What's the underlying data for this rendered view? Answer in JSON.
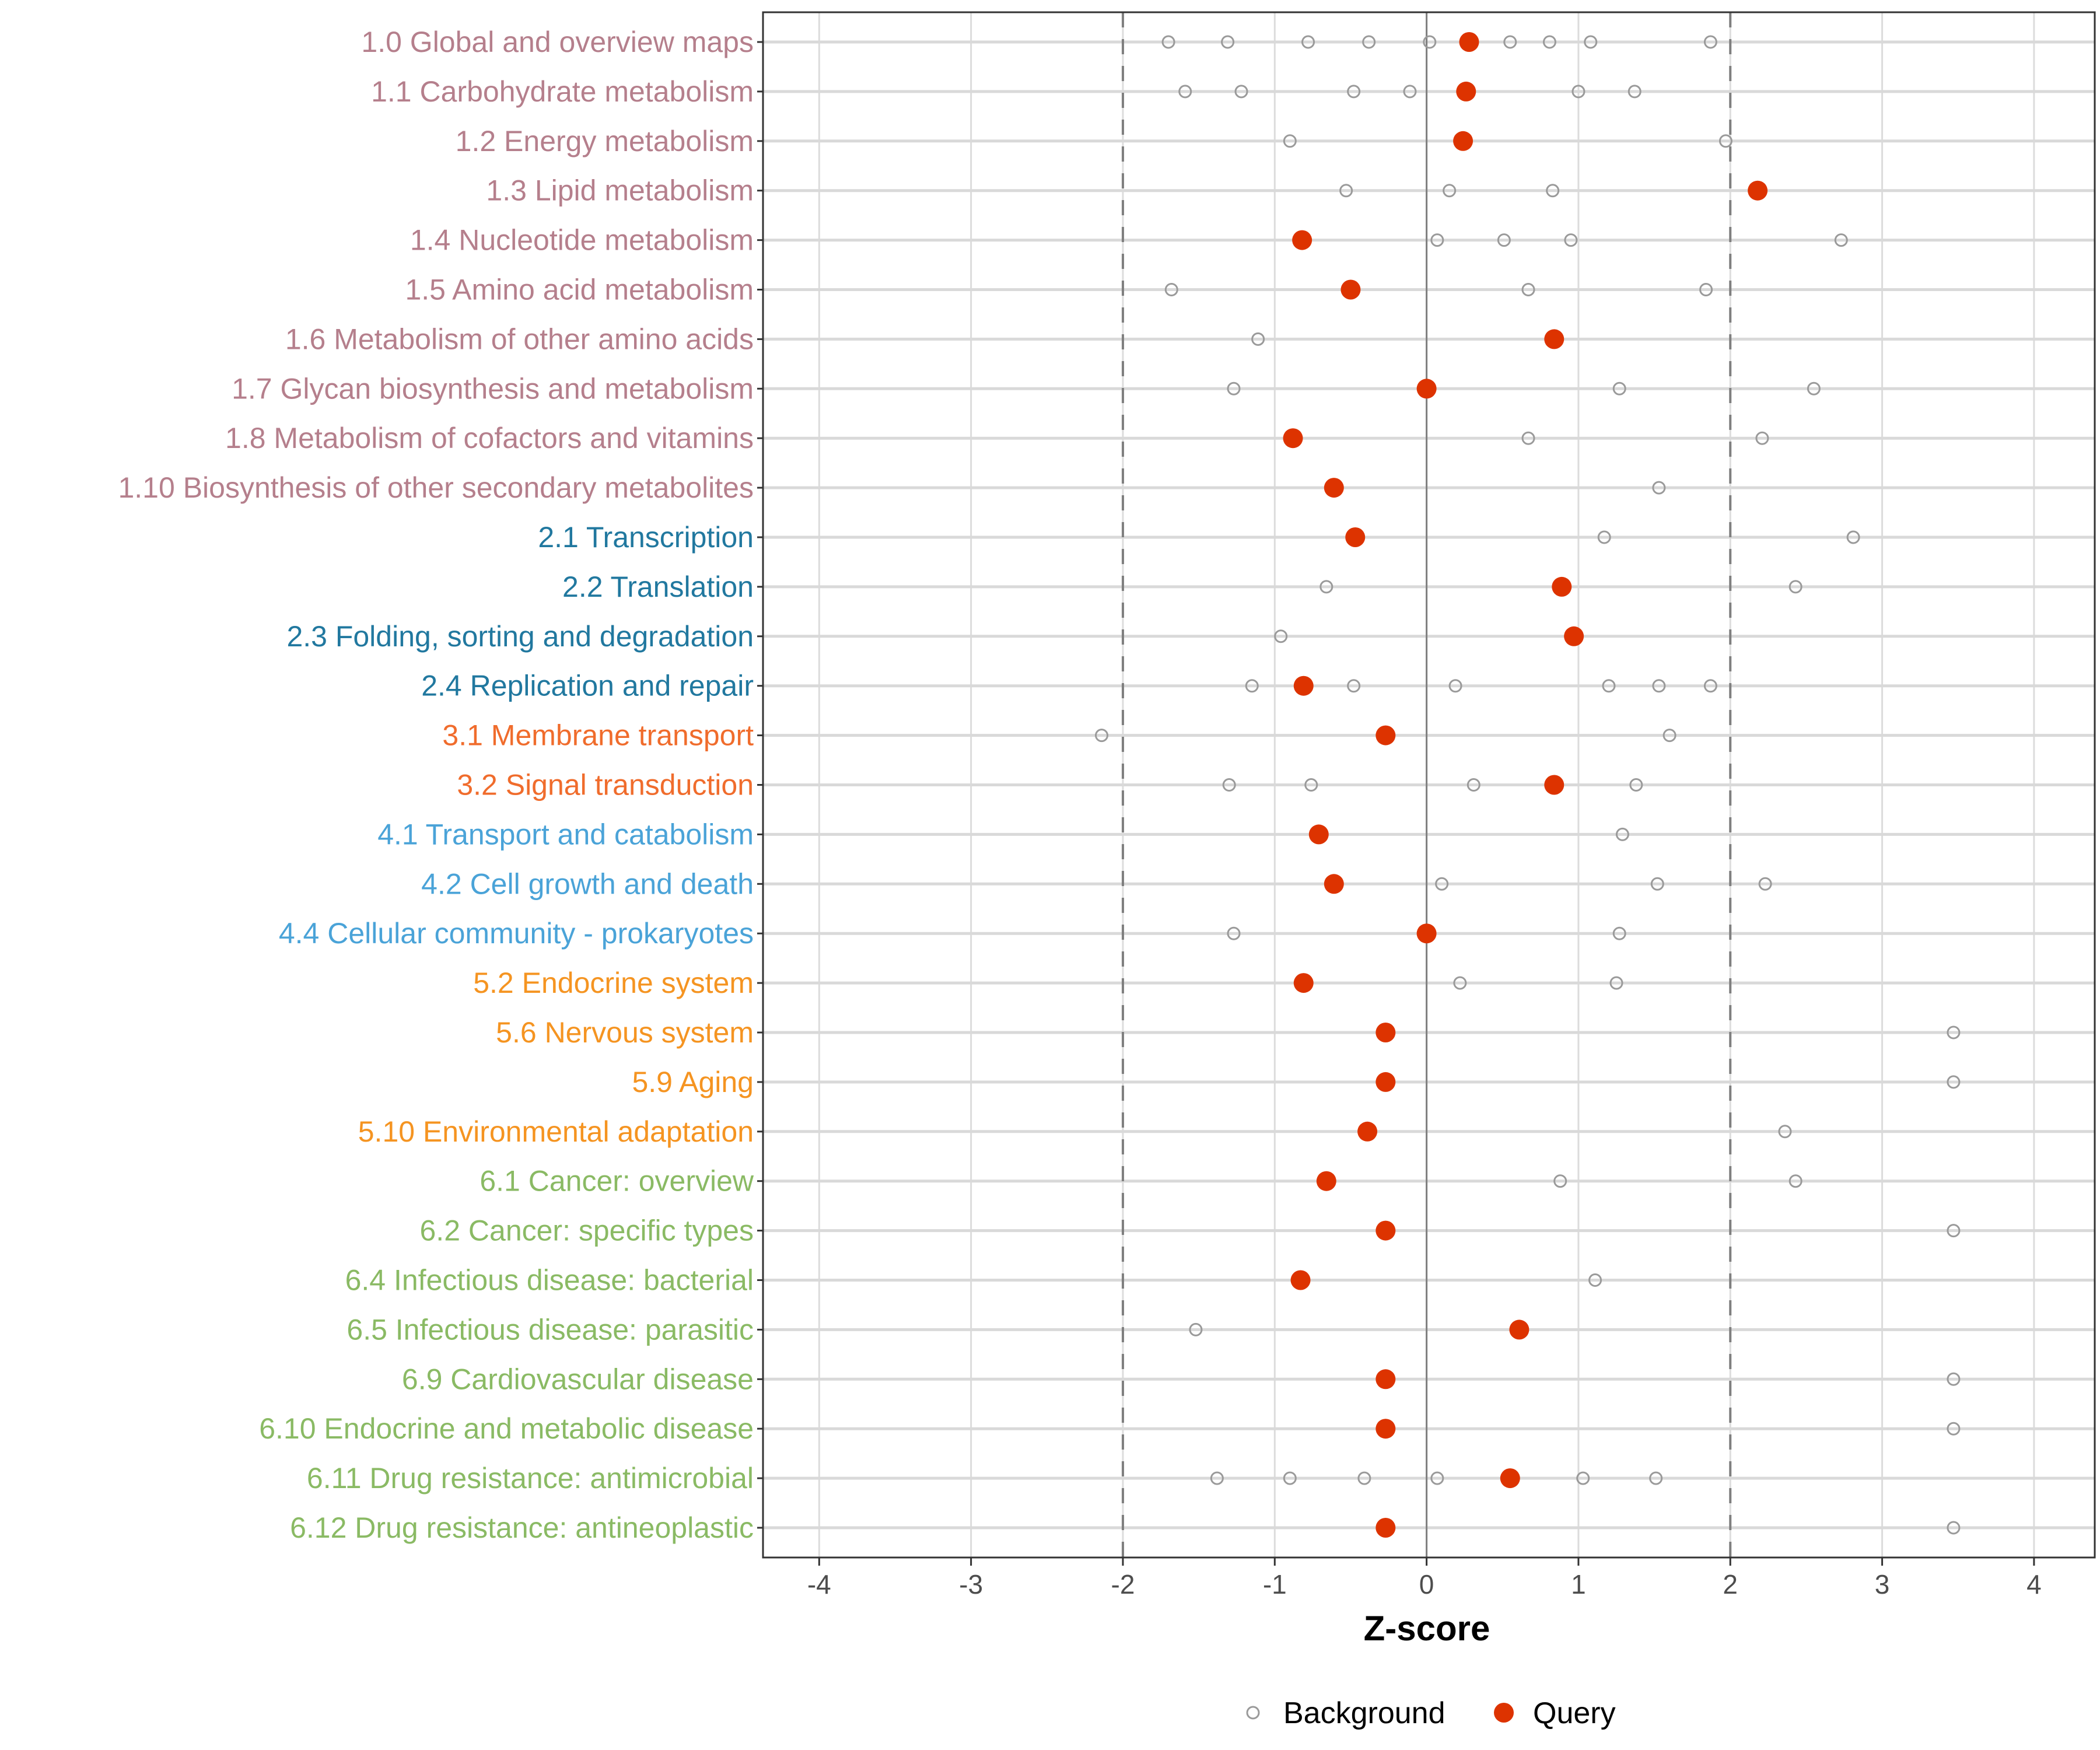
{
  "chart_data": {
    "type": "scatter",
    "title": "",
    "xlabel": "Z-score",
    "ylabel": "",
    "xlim": [
      -4.37,
      4.4
    ],
    "x_ticks": [
      -4,
      -3,
      -2,
      -1,
      0,
      1,
      2,
      3,
      4
    ],
    "x_tick_labels": [
      "-4",
      "-3",
      "-2",
      "-1",
      "0",
      "1",
      "2",
      "3",
      "4"
    ],
    "reference_lines": [
      {
        "x": -2,
        "style": "dashed"
      },
      {
        "x": 2,
        "style": "dashed"
      },
      {
        "x": 0,
        "style": "solid"
      }
    ],
    "grid": true,
    "legend": {
      "position": "bottom",
      "entries": [
        {
          "label": "Background",
          "marker": "open-circle",
          "color": "#9a9a9a"
        },
        {
          "label": "Query",
          "marker": "filled-circle",
          "color": "#dd3300"
        }
      ]
    },
    "group_colors": {
      "1": "#b57f8c",
      "2": "#21789f",
      "3": "#f06c2c",
      "4": "#4aa3d8",
      "5": "#f59421",
      "6": "#8aba64"
    },
    "categories": [
      {
        "label": "1.0 Global and overview maps",
        "group": "1",
        "query": 0.28,
        "background": [
          -1.7,
          -1.31,
          -0.78,
          -0.38,
          0.02,
          0.55,
          0.81,
          1.08,
          1.87
        ]
      },
      {
        "label": "1.1 Carbohydrate metabolism",
        "group": "1",
        "query": 0.26,
        "background": [
          -1.59,
          -1.22,
          -0.48,
          -0.11,
          1.0,
          1.37
        ]
      },
      {
        "label": "1.2 Energy metabolism",
        "group": "1",
        "query": 0.24,
        "background": [
          -0.9,
          1.97
        ]
      },
      {
        "label": "1.3 Lipid metabolism",
        "group": "1",
        "query": 2.18,
        "background": [
          -0.53,
          0.15,
          0.83
        ]
      },
      {
        "label": "1.4 Nucleotide metabolism",
        "group": "1",
        "query": -0.82,
        "background": [
          0.07,
          0.51,
          0.95,
          2.73
        ]
      },
      {
        "label": "1.5 Amino acid metabolism",
        "group": "1",
        "query": -0.5,
        "background": [
          -1.68,
          0.67,
          1.84
        ]
      },
      {
        "label": "1.6 Metabolism of other amino acids",
        "group": "1",
        "query": 0.84,
        "background": [
          -1.11
        ]
      },
      {
        "label": "1.7 Glycan biosynthesis and metabolism",
        "group": "1",
        "query": 0.0,
        "background": [
          -1.27,
          1.27,
          2.55
        ]
      },
      {
        "label": "1.8 Metabolism of cofactors and vitamins",
        "group": "1",
        "query": -0.88,
        "background": [
          0.67,
          2.21
        ]
      },
      {
        "label": "1.10 Biosynthesis of other secondary metabolites",
        "group": "1",
        "query": -0.61,
        "background": [
          1.53
        ]
      },
      {
        "label": "2.1 Transcription",
        "group": "2",
        "query": -0.47,
        "background": [
          1.17,
          2.81
        ]
      },
      {
        "label": "2.2 Translation",
        "group": "2",
        "query": 0.89,
        "background": [
          -0.66,
          2.43
        ]
      },
      {
        "label": "2.3 Folding, sorting and degradation",
        "group": "2",
        "query": 0.97,
        "background": [
          -0.96
        ]
      },
      {
        "label": "2.4 Replication and repair",
        "group": "2",
        "query": -0.81,
        "background": [
          -1.15,
          -0.48,
          0.19,
          1.2,
          1.53,
          1.87
        ]
      },
      {
        "label": "3.1 Membrane transport",
        "group": "3",
        "query": -0.27,
        "background": [
          -2.14,
          1.6
        ]
      },
      {
        "label": "3.2 Signal transduction",
        "group": "3",
        "query": 0.84,
        "background": [
          -1.3,
          -0.76,
          0.31,
          1.38
        ]
      },
      {
        "label": "4.1 Transport and catabolism",
        "group": "4",
        "query": -0.71,
        "background": [
          1.29
        ]
      },
      {
        "label": "4.2 Cell growth and death",
        "group": "4",
        "query": -0.61,
        "background": [
          0.1,
          1.52,
          2.23
        ]
      },
      {
        "label": "4.4 Cellular community - prokaryotes",
        "group": "4",
        "query": 0.0,
        "background": [
          -1.27,
          1.27
        ]
      },
      {
        "label": "5.2 Endocrine system",
        "group": "5",
        "query": -0.81,
        "background": [
          0.22,
          1.25
        ]
      },
      {
        "label": "5.6 Nervous system",
        "group": "5",
        "query": -0.27,
        "background": [
          3.47
        ]
      },
      {
        "label": "5.9 Aging",
        "group": "5",
        "query": -0.27,
        "background": [
          3.47
        ]
      },
      {
        "label": "5.10 Environmental adaptation",
        "group": "5",
        "query": -0.39,
        "background": [
          2.36
        ]
      },
      {
        "label": "6.1 Cancer: overview",
        "group": "6",
        "query": -0.66,
        "background": [
          0.88,
          2.43
        ]
      },
      {
        "label": "6.2 Cancer: specific types",
        "group": "6",
        "query": -0.27,
        "background": [
          3.47
        ]
      },
      {
        "label": "6.4 Infectious disease: bacterial",
        "group": "6",
        "query": -0.83,
        "background": [
          1.11
        ]
      },
      {
        "label": "6.5 Infectious disease: parasitic",
        "group": "6",
        "query": 0.61,
        "background": [
          -1.52
        ]
      },
      {
        "label": "6.9 Cardiovascular disease",
        "group": "6",
        "query": -0.27,
        "background": [
          3.47
        ]
      },
      {
        "label": "6.10 Endocrine and metabolic disease",
        "group": "6",
        "query": -0.27,
        "background": [
          3.47
        ]
      },
      {
        "label": "6.11 Drug resistance: antimicrobial",
        "group": "6",
        "query": 0.55,
        "background": [
          -1.38,
          -0.9,
          -0.41,
          0.07,
          1.03,
          1.51
        ]
      },
      {
        "label": "6.12 Drug resistance: antineoplastic",
        "group": "6",
        "query": -0.27,
        "background": [
          3.47
        ]
      }
    ]
  }
}
